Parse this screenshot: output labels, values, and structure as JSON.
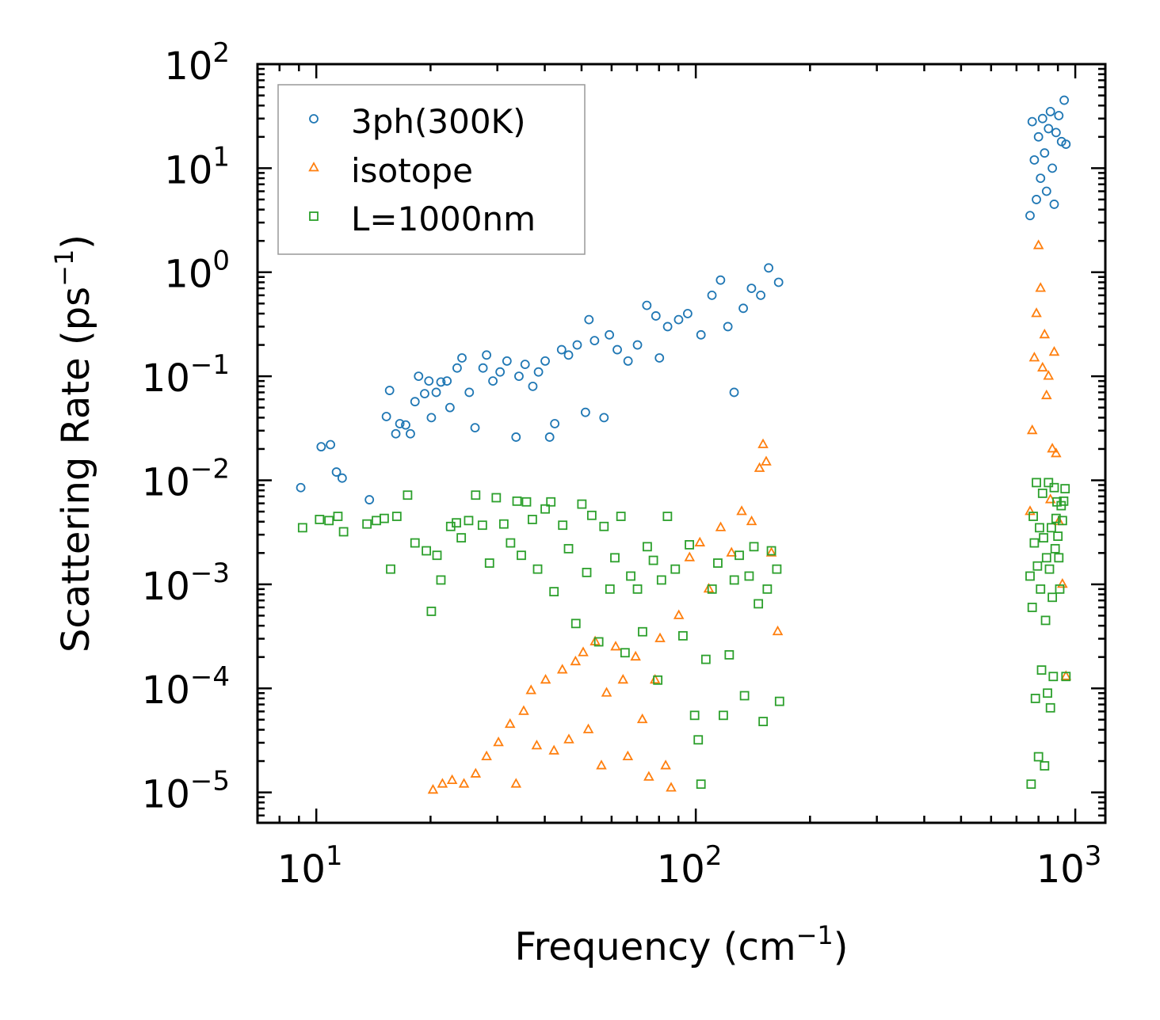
{
  "chart_data": {
    "type": "scatter",
    "title": "",
    "xlabel": "Frequency (cm",
    "xlabel_sup": "−1",
    "xlabel_end": ")",
    "ylabel": "Scattering Rate (ps",
    "ylabel_sup": "−1",
    "ylabel_end": ")",
    "xscale": "log",
    "yscale": "log",
    "xlim": [
      7,
      1200
    ],
    "ylim": [
      5.1e-06,
      100
    ],
    "x_ticks": [
      {
        "value": 10,
        "base": "10",
        "exp": "1"
      },
      {
        "value": 100,
        "base": "10",
        "exp": "2"
      },
      {
        "value": 1000,
        "base": "10",
        "exp": "3"
      }
    ],
    "y_ticks": [
      {
        "value": 100,
        "base": "10",
        "exp": "2"
      },
      {
        "value": 10,
        "base": "10",
        "exp": "1"
      },
      {
        "value": 1,
        "base": "10",
        "exp": "0"
      },
      {
        "value": 0.1,
        "base": "10",
        "exp": "−1"
      },
      {
        "value": 0.01,
        "base": "10",
        "exp": "−2"
      },
      {
        "value": 0.001,
        "base": "10",
        "exp": "−3"
      },
      {
        "value": 0.0001,
        "base": "10",
        "exp": "−4"
      },
      {
        "value": 1e-05,
        "base": "10",
        "exp": "−5"
      }
    ],
    "grid": false,
    "legend_position": "top-left",
    "series": [
      {
        "name": "3ph(300K)",
        "marker": "circle",
        "color": "#1f77b4",
        "points": [
          [
            9.1,
            0.0085
          ],
          [
            10.3,
            0.021
          ],
          [
            10.9,
            0.022
          ],
          [
            11.3,
            0.012
          ],
          [
            11.7,
            0.0105
          ],
          [
            13.8,
            0.0065
          ],
          [
            15.3,
            0.041
          ],
          [
            15.6,
            0.073
          ],
          [
            16.2,
            0.028
          ],
          [
            16.6,
            0.035
          ],
          [
            17.2,
            0.034
          ],
          [
            17.7,
            0.028
          ],
          [
            18.2,
            0.057
          ],
          [
            18.6,
            0.1
          ],
          [
            19.3,
            0.068
          ],
          [
            19.8,
            0.09
          ],
          [
            20.1,
            0.04
          ],
          [
            20.7,
            0.07
          ],
          [
            21.3,
            0.088
          ],
          [
            22.1,
            0.09
          ],
          [
            22.5,
            0.05
          ],
          [
            23.5,
            0.12
          ],
          [
            24.2,
            0.15
          ],
          [
            25.3,
            0.07
          ],
          [
            26.2,
            0.032
          ],
          [
            27.5,
            0.12
          ],
          [
            28.1,
            0.16
          ],
          [
            29.2,
            0.09
          ],
          [
            30.5,
            0.11
          ],
          [
            31.8,
            0.14
          ],
          [
            33.6,
            0.026
          ],
          [
            34.2,
            0.1
          ],
          [
            35.5,
            0.13
          ],
          [
            37.2,
            0.08
          ],
          [
            38.5,
            0.11
          ],
          [
            40.1,
            0.14
          ],
          [
            41.2,
            0.026
          ],
          [
            42.5,
            0.035
          ],
          [
            44.3,
            0.18
          ],
          [
            46.2,
            0.16
          ],
          [
            48.7,
            0.2
          ],
          [
            51.2,
            0.045
          ],
          [
            52.3,
            0.35
          ],
          [
            54.1,
            0.22
          ],
          [
            57.3,
            0.04
          ],
          [
            59.2,
            0.25
          ],
          [
            62.1,
            0.18
          ],
          [
            66.3,
            0.14
          ],
          [
            70.2,
            0.2
          ],
          [
            74.3,
            0.48
          ],
          [
            78.5,
            0.38
          ],
          [
            80.2,
            0.15
          ],
          [
            84.3,
            0.3
          ],
          [
            90.1,
            0.35
          ],
          [
            95.2,
            0.4
          ],
          [
            103.2,
            0.25
          ],
          [
            110.3,
            0.6
          ],
          [
            116.2,
            0.84
          ],
          [
            121.5,
            0.3
          ],
          [
            126.2,
            0.07
          ],
          [
            133.4,
            0.45
          ],
          [
            140.2,
            0.7
          ],
          [
            148.3,
            0.6
          ],
          [
            155.6,
            1.1
          ],
          [
            165.3,
            0.8
          ],
          [
            760,
            3.5
          ],
          [
            770,
            28
          ],
          [
            780,
            12
          ],
          [
            790,
            5
          ],
          [
            800,
            20
          ],
          [
            810,
            8
          ],
          [
            820,
            30
          ],
          [
            830,
            14
          ],
          [
            840,
            6
          ],
          [
            850,
            24
          ],
          [
            860,
            35
          ],
          [
            870,
            10
          ],
          [
            880,
            4.5
          ],
          [
            890,
            22
          ],
          [
            905,
            32
          ],
          [
            920,
            18
          ],
          [
            935,
            45
          ],
          [
            945,
            17
          ]
        ]
      },
      {
        "name": "isotope",
        "marker": "triangle",
        "color": "#ff7f0e",
        "points": [
          [
            20.3,
            1.05e-05
          ],
          [
            21.5,
            1.2e-05
          ],
          [
            22.8,
            1.3e-05
          ],
          [
            24.5,
            1.2e-05
          ],
          [
            26.3,
            1.5e-05
          ],
          [
            28.1,
            2.2e-05
          ],
          [
            30.2,
            3e-05
          ],
          [
            32.4,
            4.5e-05
          ],
          [
            33.6,
            1.2e-05
          ],
          [
            35.2,
            6e-05
          ],
          [
            36.8,
            9.5e-05
          ],
          [
            38.1,
            2.8e-05
          ],
          [
            40.2,
            0.00012
          ],
          [
            42.3,
            2.5e-05
          ],
          [
            44.5,
            0.00015
          ],
          [
            46.3,
            3.2e-05
          ],
          [
            48.2,
            0.00018
          ],
          [
            50.5,
            0.00022
          ],
          [
            52.1,
            4e-05
          ],
          [
            54.3,
            0.00028
          ],
          [
            56.4,
            1.8e-05
          ],
          [
            58.2,
            9e-05
          ],
          [
            61.5,
            0.00025
          ],
          [
            64.3,
            0.00012
          ],
          [
            66.2,
            2.2e-05
          ],
          [
            69.4,
            0.0002
          ],
          [
            72.3,
            5e-05
          ],
          [
            75.2,
            1.4e-05
          ],
          [
            78.1,
            0.00012
          ],
          [
            80.5,
            0.0003
          ],
          [
            83.3,
            1.8e-05
          ],
          [
            86.1,
            1.1e-05
          ],
          [
            90.2,
            0.0005
          ],
          [
            96.3,
            0.0018
          ],
          [
            102.5,
            0.0025
          ],
          [
            108.2,
            0.0009
          ],
          [
            116.3,
            0.0035
          ],
          [
            124.2,
            0.002
          ],
          [
            132.1,
            0.005
          ],
          [
            140.3,
            0.004
          ],
          [
            147.2,
            0.013
          ],
          [
            150.4,
            0.022
          ],
          [
            153.3,
            0.015
          ],
          [
            158.2,
            0.002
          ],
          [
            164.4,
            0.00035
          ],
          [
            760,
            0.005
          ],
          [
            770,
            0.03
          ],
          [
            780,
            0.15
          ],
          [
            790,
            0.4
          ],
          [
            800,
            1.8
          ],
          [
            810,
            0.7
          ],
          [
            820,
            0.12
          ],
          [
            830,
            0.25
          ],
          [
            840,
            0.065
          ],
          [
            850,
            0.1
          ],
          [
            860,
            0.0065
          ],
          [
            870,
            0.02
          ],
          [
            880,
            0.17
          ],
          [
            890,
            0.018
          ],
          [
            905,
            0.004
          ],
          [
            925,
            0.001
          ],
          [
            945,
            0.00013
          ]
        ]
      },
      {
        "name": "L=1000nm",
        "marker": "square",
        "color": "#2ca02c",
        "points": [
          [
            9.2,
            0.0035
          ],
          [
            10.2,
            0.0042
          ],
          [
            10.8,
            0.0041
          ],
          [
            11.4,
            0.0045
          ],
          [
            11.8,
            0.0032
          ],
          [
            13.6,
            0.0038
          ],
          [
            14.4,
            0.0041
          ],
          [
            15.1,
            0.0043
          ],
          [
            15.7,
            0.0014
          ],
          [
            16.3,
            0.0045
          ],
          [
            17.4,
            0.0072
          ],
          [
            18.2,
            0.0025
          ],
          [
            19.5,
            0.0021
          ],
          [
            20.1,
            0.00055
          ],
          [
            20.8,
            0.0019
          ],
          [
            21.3,
            0.0011
          ],
          [
            22.6,
            0.0036
          ],
          [
            23.4,
            0.0039
          ],
          [
            24.1,
            0.0028
          ],
          [
            25.2,
            0.0041
          ],
          [
            26.3,
            0.0072
          ],
          [
            27.4,
            0.0037
          ],
          [
            28.6,
            0.0016
          ],
          [
            29.8,
            0.0068
          ],
          [
            31.2,
            0.0038
          ],
          [
            32.5,
            0.0025
          ],
          [
            33.8,
            0.0063
          ],
          [
            34.7,
            0.0019
          ],
          [
            35.8,
            0.0062
          ],
          [
            37.1,
            0.0042
          ],
          [
            38.3,
            0.0014
          ],
          [
            40.1,
            0.0053
          ],
          [
            41.5,
            0.0062
          ],
          [
            42.3,
            0.00085
          ],
          [
            44.6,
            0.0037
          ],
          [
            46.2,
            0.0022
          ],
          [
            48.3,
            0.00042
          ],
          [
            50.1,
            0.0059
          ],
          [
            51.6,
            0.0013
          ],
          [
            53.2,
            0.0046
          ],
          [
            55.5,
            0.00028
          ],
          [
            57.3,
            0.0036
          ],
          [
            59.4,
            0.0009
          ],
          [
            61.2,
            0.0018
          ],
          [
            63.5,
            0.0045
          ],
          [
            65.1,
            0.00022
          ],
          [
            67.4,
            0.0012
          ],
          [
            70.2,
            0.0009
          ],
          [
            72.4,
            0.00035
          ],
          [
            74.5,
            0.0023
          ],
          [
            77.3,
            0.0017
          ],
          [
            79.4,
            0.00012
          ],
          [
            81.2,
            0.0011
          ],
          [
            84.2,
            0.0045
          ],
          [
            88.3,
            0.0014
          ],
          [
            92.5,
            0.00032
          ],
          [
            96.2,
            0.0024
          ],
          [
            99.3,
            5.5e-05
          ],
          [
            101.5,
            3.2e-05
          ],
          [
            103.2,
            1.2e-05
          ],
          [
            106.3,
            0.00019
          ],
          [
            110.4,
            0.0009
          ],
          [
            114.3,
            0.0016
          ],
          [
            118.2,
            5.5e-05
          ],
          [
            122.5,
            0.00021
          ],
          [
            126.3,
            0.0011
          ],
          [
            130.2,
            0.0019
          ],
          [
            134.4,
            8.5e-05
          ],
          [
            138.2,
            0.0012
          ],
          [
            142.3,
            0.0023
          ],
          [
            146.2,
            0.00065
          ],
          [
            150.5,
            4.8e-05
          ],
          [
            154.3,
            0.0009
          ],
          [
            158.2,
            0.0021
          ],
          [
            163.5,
            0.0014
          ],
          [
            166.2,
            7.5e-05
          ],
          [
            760,
            0.0012
          ],
          [
            765,
            1.2e-05
          ],
          [
            770,
            0.0006
          ],
          [
            775,
            0.0045
          ],
          [
            780,
            0.0025
          ],
          [
            785,
            8e-05
          ],
          [
            790,
            0.0095
          ],
          [
            795,
            0.0015
          ],
          [
            800,
            2.2e-05
          ],
          [
            805,
            0.0035
          ],
          [
            810,
            0.0009
          ],
          [
            815,
            0.00015
          ],
          [
            820,
            0.0075
          ],
          [
            825,
            0.0028
          ],
          [
            830,
            1.8e-05
          ],
          [
            835,
            0.00045
          ],
          [
            840,
            0.0018
          ],
          [
            845,
            9e-05
          ],
          [
            850,
            0.0095
          ],
          [
            855,
            0.0014
          ],
          [
            860,
            6.5e-05
          ],
          [
            865,
            0.0035
          ],
          [
            870,
            0.00075
          ],
          [
            875,
            0.00013
          ],
          [
            880,
            0.0085
          ],
          [
            885,
            0.0022
          ],
          [
            890,
            0.0043
          ],
          [
            895,
            0.0062
          ],
          [
            900,
            0.0029
          ],
          [
            905,
            0.0018
          ],
          [
            910,
            0.0009
          ],
          [
            918,
            0.0057
          ],
          [
            925,
            0.0041
          ],
          [
            932,
            0.0063
          ],
          [
            940,
            0.0083
          ],
          [
            945,
            0.00013
          ]
        ]
      }
    ]
  }
}
